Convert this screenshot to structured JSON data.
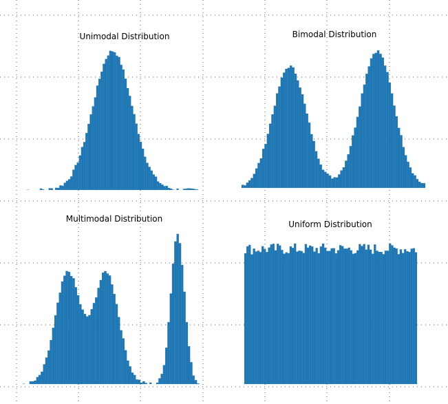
{
  "chart_data": [
    {
      "type": "bar",
      "title": "Unimodal Distribution",
      "x_range": [
        -4,
        4
      ],
      "ylim": [
        0,
        1
      ],
      "grid": true,
      "bin_count": 80,
      "peaks": [
        {
          "center": 0.05,
          "width": 0.9,
          "height": 1.0
        }
      ],
      "noise": 0.012
    },
    {
      "type": "bar",
      "title": "Bimodal Distribution",
      "x_range": [
        -4,
        4
      ],
      "ylim": [
        0,
        1
      ],
      "grid": true,
      "bin_count": 80,
      "peaks": [
        {
          "center": -1.9,
          "width": 0.75,
          "height": 0.87
        },
        {
          "center": 1.9,
          "width": 0.75,
          "height": 0.98
        }
      ],
      "noise": 0.012
    },
    {
      "type": "bar",
      "title": "Multimodal Distribution",
      "x_range": [
        -4,
        4
      ],
      "ylim": [
        0,
        1
      ],
      "grid": true,
      "bin_count": 80,
      "peaks": [
        {
          "center": -2.0,
          "width": 0.55,
          "height": 0.74
        },
        {
          "center": -0.3,
          "width": 0.55,
          "height": 0.74
        },
        {
          "center": 2.85,
          "width": 0.3,
          "height": 1.0
        }
      ],
      "noise": 0.012
    },
    {
      "type": "bar",
      "title": "Uniform Distribution",
      "x_range": [
        -4,
        4
      ],
      "ylim": [
        0,
        1
      ],
      "grid": true,
      "bin_count": 80,
      "uniform_level": 0.93,
      "noise": 0.04
    }
  ]
}
